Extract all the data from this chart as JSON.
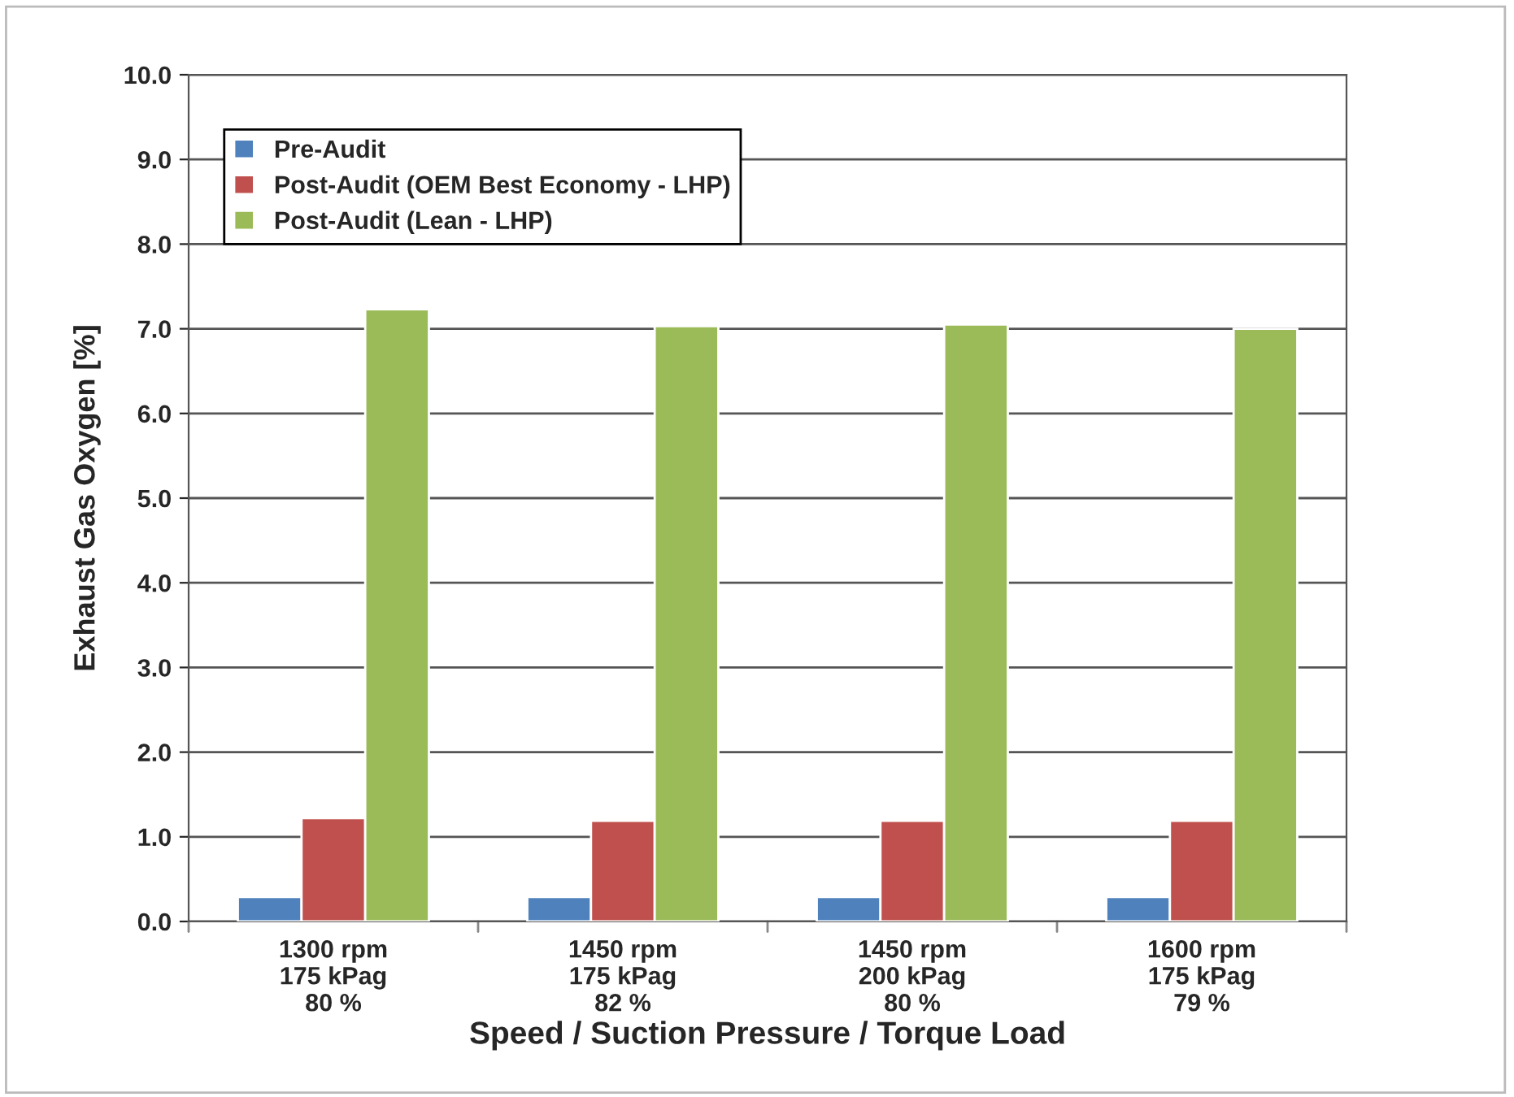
{
  "chart_data": {
    "type": "bar",
    "xlabel": "Speed / Suction Pressure / Torque Load",
    "ylabel": "Exhaust Gas Oxygen [%]",
    "categories": [
      "1300 rpm\n175 kPag\n80 %",
      "1450 rpm\n175 kPag\n82 %",
      "1450 rpm\n200 kPag\n80 %",
      "1600 rpm\n175 kPag\n79 %"
    ],
    "series": [
      {
        "name": "Pre-Audit",
        "color": "#4f81bd",
        "values": [
          0.29,
          0.29,
          0.29,
          0.29
        ]
      },
      {
        "name": "Post-Audit (OEM Best Economy - LHP)",
        "color": "#c0504d",
        "values": [
          1.22,
          1.19,
          1.19,
          1.19
        ]
      },
      {
        "name": "Post-Audit (Lean - LHP)",
        "color": "#9bbb59",
        "values": [
          7.23,
          7.03,
          7.05,
          7.0
        ]
      }
    ],
    "ylim": [
      0,
      10
    ],
    "yticks": [
      {
        "value": 0,
        "label": "0.0"
      },
      {
        "value": 1,
        "label": "1.0"
      },
      {
        "value": 2,
        "label": "2.0"
      },
      {
        "value": 3,
        "label": "3.0"
      },
      {
        "value": 4,
        "label": "4.0"
      },
      {
        "value": 5,
        "label": "5.0"
      },
      {
        "value": 6,
        "label": "6.0"
      },
      {
        "value": 7,
        "label": "7.0"
      },
      {
        "value": 8,
        "label": "8.0"
      },
      {
        "value": 9,
        "label": "9.0"
      },
      {
        "value": 10,
        "label": "10.0"
      }
    ],
    "grid": "y",
    "legend": "top left"
  }
}
